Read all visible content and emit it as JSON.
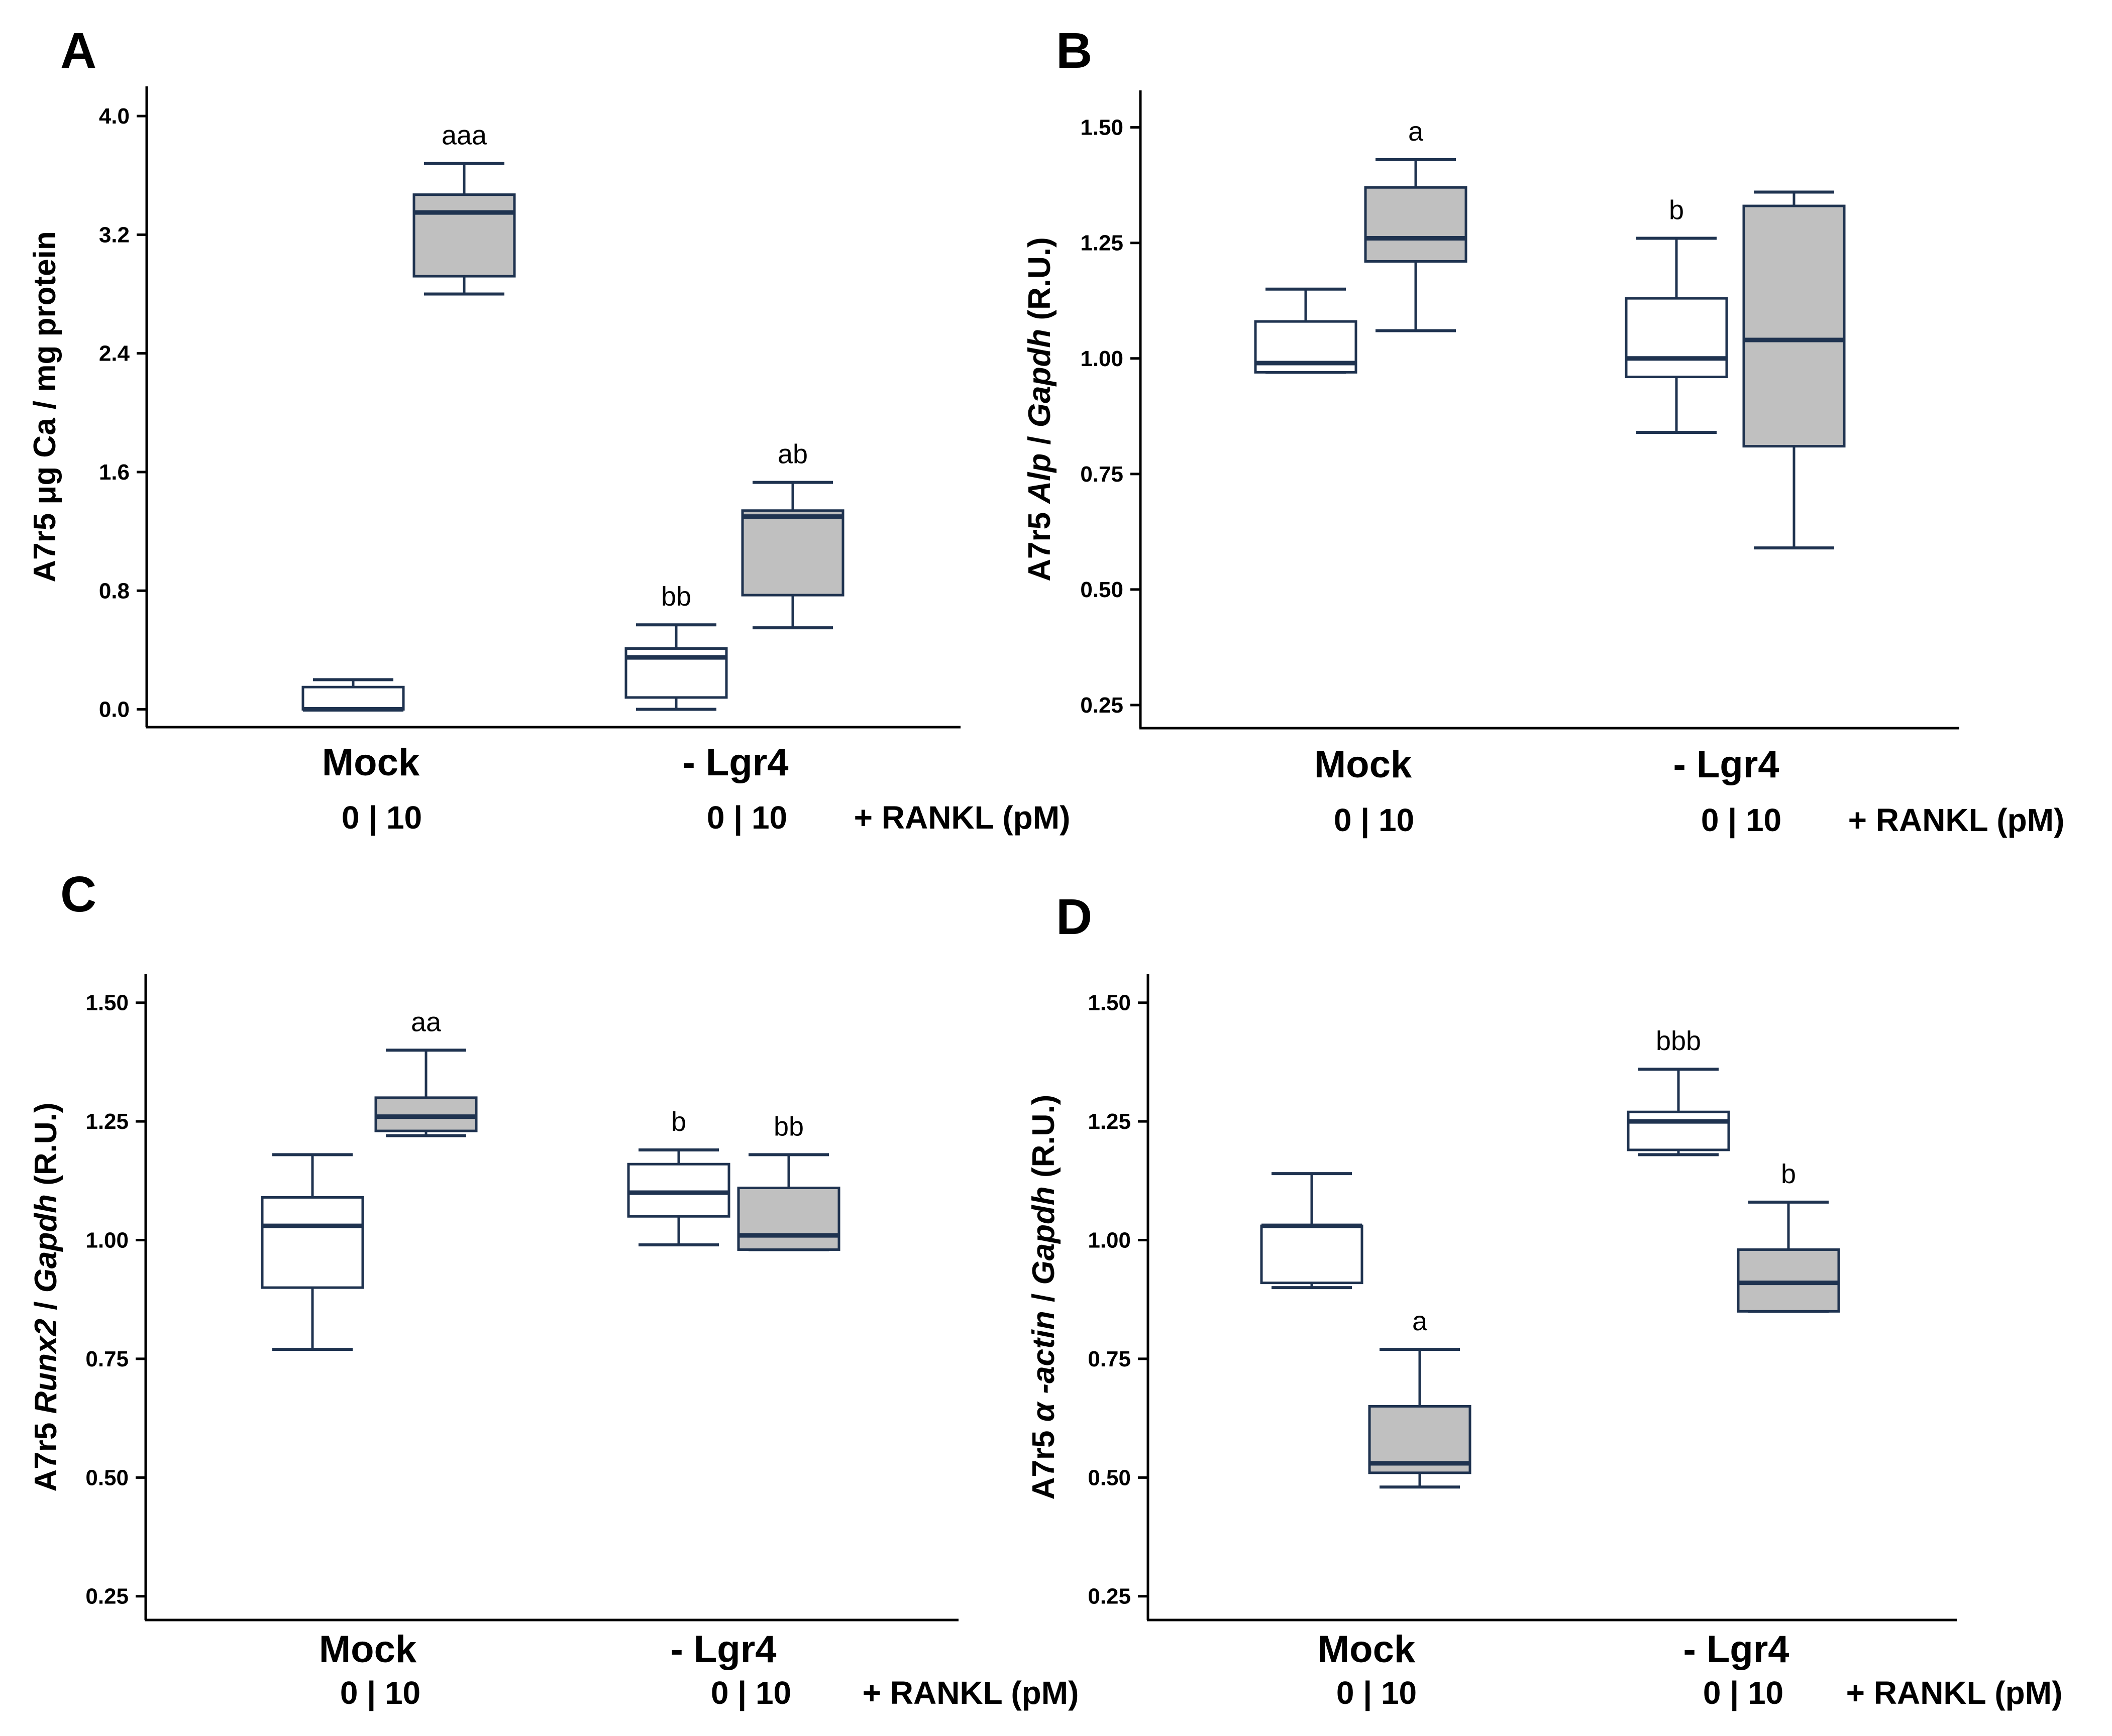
{
  "colors": {
    "stroke": "#1f3350",
    "fill_rankl": "#c0c0c0",
    "fill_control": "#ffffff",
    "axis": "#000000"
  },
  "chart_data": [
    {
      "panel": "A",
      "type": "box",
      "ylabel": "A7r5 μg Ca / mg protein",
      "ylim": [
        -0.12,
        4.2
      ],
      "yticks": [
        0.0,
        0.8,
        1.6,
        2.4,
        3.2,
        4.0
      ],
      "ytick_labels": [
        "0.0",
        "0.8",
        "1.6",
        "2.4",
        "3.2",
        "4.0"
      ],
      "groups": [
        "Mock",
        "- Lgr4"
      ],
      "dose_labels": [
        "0 | 10",
        "0 | 10"
      ],
      "treatment_label": "+ RANKL (pM)",
      "boxes": [
        {
          "group": "Mock",
          "rankl": 0,
          "min": 0.0,
          "q1": 0.0,
          "median": 0.0,
          "q3": 0.15,
          "max": 0.2,
          "label": ""
        },
        {
          "group": "Mock",
          "rankl": 10,
          "min": 2.8,
          "q1": 2.92,
          "median": 3.35,
          "q3": 3.47,
          "max": 3.68,
          "label": "aaa"
        },
        {
          "group": "- Lgr4",
          "rankl": 0,
          "min": 0.0,
          "q1": 0.08,
          "median": 0.35,
          "q3": 0.41,
          "max": 0.57,
          "label": "bb"
        },
        {
          "group": "- Lgr4",
          "rankl": 10,
          "min": 0.55,
          "q1": 0.77,
          "median": 1.3,
          "q3": 1.34,
          "max": 1.53,
          "label": "ab"
        }
      ]
    },
    {
      "panel": "B",
      "type": "box",
      "ylabel_parts": [
        "A7r5 ",
        "Alp",
        " / ",
        "Gapdh",
        " (R.U.)"
      ],
      "ylim": [
        0.2,
        1.58
      ],
      "yticks": [
        0.25,
        0.5,
        0.75,
        1.0,
        1.25,
        1.5
      ],
      "ytick_labels": [
        "0.25",
        "0.50",
        "0.75",
        "1.00",
        "1.25",
        "1.50"
      ],
      "groups": [
        "Mock",
        "- Lgr4"
      ],
      "dose_labels": [
        "0 | 10",
        "0 | 10"
      ],
      "treatment_label": "+ RANKL (pM)",
      "boxes": [
        {
          "group": "Mock",
          "rankl": 0,
          "min": 0.97,
          "q1": 0.97,
          "median": 0.99,
          "q3": 1.08,
          "max": 1.15,
          "label": ""
        },
        {
          "group": "Mock",
          "rankl": 10,
          "min": 1.06,
          "q1": 1.21,
          "median": 1.26,
          "q3": 1.37,
          "max": 1.43,
          "label": "a"
        },
        {
          "group": "- Lgr4",
          "rankl": 0,
          "min": 0.84,
          "q1": 0.96,
          "median": 1.0,
          "q3": 1.13,
          "max": 1.26,
          "label": "b"
        },
        {
          "group": "- Lgr4",
          "rankl": 10,
          "min": 0.59,
          "q1": 0.81,
          "median": 1.04,
          "q3": 1.33,
          "max": 1.36,
          "label": ""
        }
      ]
    },
    {
      "panel": "C",
      "type": "box",
      "ylabel_parts": [
        "A7r5 ",
        "Runx2",
        " / ",
        "Gapdh",
        " (R.U.)"
      ],
      "ylim": [
        0.2,
        1.56
      ],
      "yticks": [
        0.25,
        0.5,
        0.75,
        1.0,
        1.25,
        1.5
      ],
      "ytick_labels": [
        "0.25",
        "0.50",
        "0.75",
        "1.00",
        "1.25",
        "1.50"
      ],
      "groups": [
        "Mock",
        "- Lgr4"
      ],
      "dose_labels": [
        "0 | 10",
        "0 | 10"
      ],
      "treatment_label": "+ RANKL (pM)",
      "boxes": [
        {
          "group": "Mock",
          "rankl": 0,
          "min": 0.77,
          "q1": 0.9,
          "median": 1.03,
          "q3": 1.09,
          "max": 1.18,
          "label": ""
        },
        {
          "group": "Mock",
          "rankl": 10,
          "min": 1.22,
          "q1": 1.23,
          "median": 1.26,
          "q3": 1.3,
          "max": 1.4,
          "label": "aa"
        },
        {
          "group": "- Lgr4",
          "rankl": 0,
          "min": 0.99,
          "q1": 1.05,
          "median": 1.1,
          "q3": 1.16,
          "max": 1.19,
          "label": "b"
        },
        {
          "group": "- Lgr4",
          "rankl": 10,
          "min": 0.98,
          "q1": 0.98,
          "median": 1.01,
          "q3": 1.11,
          "max": 1.18,
          "label": "bb"
        }
      ]
    },
    {
      "panel": "D",
      "type": "box",
      "ylabel_parts": [
        "A7r5 ",
        "α -actin",
        " / ",
        "Gapdh",
        " (R.U.)"
      ],
      "ylim": [
        0.2,
        1.56
      ],
      "yticks": [
        0.25,
        0.5,
        0.75,
        1.0,
        1.25,
        1.5
      ],
      "ytick_labels": [
        "0.25",
        "0.50",
        "0.75",
        "1.00",
        "1.25",
        "1.50"
      ],
      "groups": [
        "Mock",
        "- Lgr4"
      ],
      "dose_labels": [
        "0 | 10",
        "0 | 10"
      ],
      "treatment_label": "+ RANKL (pM)",
      "boxes": [
        {
          "group": "Mock",
          "rankl": 0,
          "min": 0.9,
          "q1": 0.91,
          "median": 1.03,
          "q3": 1.03,
          "max": 1.14,
          "label": ""
        },
        {
          "group": "Mock",
          "rankl": 10,
          "min": 0.48,
          "q1": 0.51,
          "median": 0.53,
          "q3": 0.65,
          "max": 0.77,
          "label": "a"
        },
        {
          "group": "- Lgr4",
          "rankl": 0,
          "min": 1.18,
          "q1": 1.19,
          "median": 1.25,
          "q3": 1.27,
          "max": 1.36,
          "label": "bbb"
        },
        {
          "group": "- Lgr4",
          "rankl": 10,
          "min": 0.85,
          "q1": 0.85,
          "median": 0.91,
          "q3": 0.98,
          "max": 1.08,
          "label": "b"
        }
      ]
    }
  ]
}
